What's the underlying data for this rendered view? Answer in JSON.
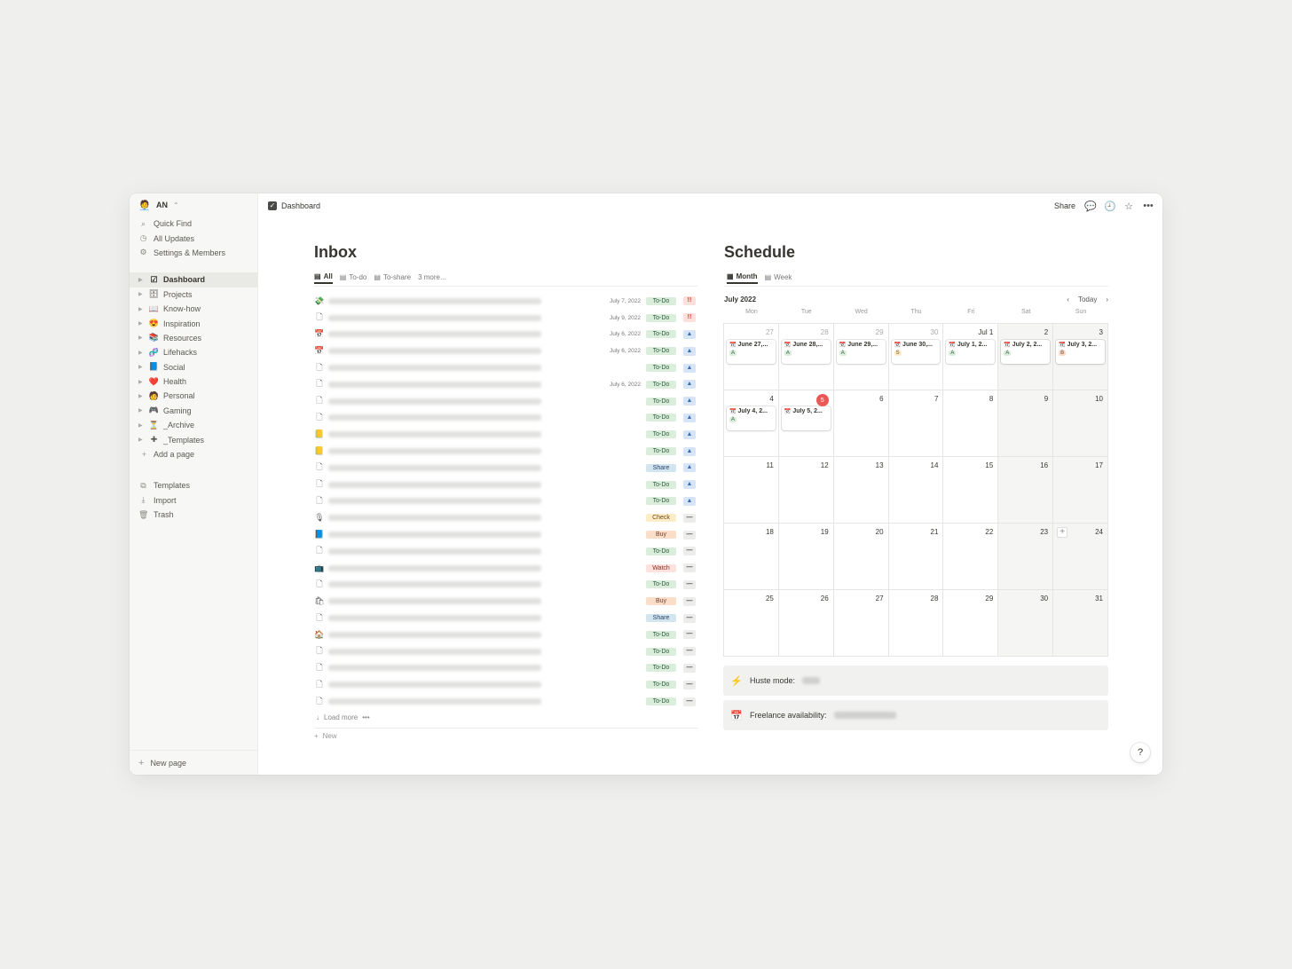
{
  "sidebar": {
    "workspace": {
      "avatar": "🧑‍💼",
      "name": "AN",
      "chevron": "⌃"
    },
    "top_items": [
      {
        "icon": "⌕",
        "icon_name": "search-icon",
        "label": "Quick Find"
      },
      {
        "icon": "◷",
        "icon_name": "clock-icon",
        "label": "All Updates"
      },
      {
        "icon": "⚙",
        "icon_name": "gear-icon",
        "label": "Settings & Members"
      }
    ],
    "pages": [
      {
        "emoji": "☑",
        "label": "Dashboard",
        "active": true
      },
      {
        "emoji": "🗄",
        "label": "Projects"
      },
      {
        "emoji": "📖",
        "label": "Know-how"
      },
      {
        "emoji": "😍",
        "label": "Inspiration"
      },
      {
        "emoji": "📚",
        "label": "Resources"
      },
      {
        "emoji": "🧬",
        "label": "Lifehacks"
      },
      {
        "emoji": "📘",
        "label": "Social"
      },
      {
        "emoji": "❤️",
        "label": "Health"
      },
      {
        "emoji": "🧑",
        "label": "Personal"
      },
      {
        "emoji": "🎮",
        "label": "Gaming"
      },
      {
        "emoji": "⏳",
        "label": "_Archive"
      },
      {
        "emoji": "✚",
        "label": "_Templates"
      }
    ],
    "add_page": {
      "icon": "+",
      "label": "Add a page"
    },
    "bottom_items": [
      {
        "icon": "⧉",
        "icon_name": "templates-icon",
        "label": "Templates"
      },
      {
        "icon": "⤓",
        "icon_name": "import-icon",
        "label": "Import"
      },
      {
        "icon": "🗑",
        "icon_name": "trash-icon",
        "label": "Trash"
      }
    ],
    "new_page": {
      "icon": "+",
      "label": "New page"
    }
  },
  "topbar": {
    "breadcrumb": "Dashboard",
    "share_label": "Share",
    "icons": [
      {
        "glyph": "💬",
        "name": "comment-icon"
      },
      {
        "glyph": "🕘",
        "name": "history-icon"
      },
      {
        "glyph": "☆",
        "name": "star-icon"
      },
      {
        "glyph": "•••",
        "name": "more-icon"
      }
    ]
  },
  "inbox": {
    "title": "Inbox",
    "tabs": [
      {
        "icon": "▤",
        "label": "All",
        "active": true
      },
      {
        "icon": "▤",
        "label": "To-do"
      },
      {
        "icon": "▤",
        "label": "To-share"
      },
      {
        "icon": "",
        "label": "3 more..."
      }
    ],
    "rows": [
      {
        "icon": "💸",
        "date": "July 7, 2022",
        "tag": "To-Do",
        "prio": "high"
      },
      {
        "icon": "🗋",
        "date": "July 9, 2022",
        "tag": "To-Do",
        "prio": "high"
      },
      {
        "icon": "📅",
        "date": "July 6, 2022",
        "tag": "To-Do",
        "prio": "med"
      },
      {
        "icon": "📅",
        "date": "July 6, 2022",
        "tag": "To-Do",
        "prio": "med"
      },
      {
        "icon": "🗋",
        "date": "",
        "tag": "To-Do",
        "prio": "med"
      },
      {
        "icon": "🗋",
        "date": "July 6, 2022",
        "tag": "To-Do",
        "prio": "med"
      },
      {
        "icon": "🗋",
        "date": "",
        "tag": "To-Do",
        "prio": "med"
      },
      {
        "icon": "🗋",
        "date": "",
        "tag": "To-Do",
        "prio": "med"
      },
      {
        "icon": "📒",
        "date": "",
        "tag": "To-Do",
        "prio": "med"
      },
      {
        "icon": "📒",
        "date": "",
        "tag": "To-Do",
        "prio": "med"
      },
      {
        "icon": "🗋",
        "date": "",
        "tag": "Share",
        "prio": "med"
      },
      {
        "icon": "🗋",
        "date": "",
        "tag": "To-Do",
        "prio": "med"
      },
      {
        "icon": "🗋",
        "date": "",
        "tag": "To-Do",
        "prio": "med"
      },
      {
        "icon": "🎙",
        "date": "",
        "tag": "Check",
        "prio": "low"
      },
      {
        "icon": "📘",
        "date": "",
        "tag": "Buy",
        "prio": "low"
      },
      {
        "icon": "🗋",
        "date": "",
        "tag": "To-Do",
        "prio": "low"
      },
      {
        "icon": "📺",
        "date": "",
        "tag": "Watch",
        "prio": "low"
      },
      {
        "icon": "🗋",
        "date": "",
        "tag": "To-Do",
        "prio": "low"
      },
      {
        "icon": "🛍",
        "date": "",
        "tag": "Buy",
        "prio": "low"
      },
      {
        "icon": "🗋",
        "date": "",
        "tag": "Share",
        "prio": "low"
      },
      {
        "icon": "🏠",
        "date": "",
        "tag": "To-Do",
        "prio": "low"
      },
      {
        "icon": "🗋",
        "date": "",
        "tag": "To-Do",
        "prio": "low"
      },
      {
        "icon": "🗋",
        "date": "",
        "tag": "To-Do",
        "prio": "low"
      },
      {
        "icon": "🗋",
        "date": "",
        "tag": "To-Do",
        "prio": "low"
      },
      {
        "icon": "🗋",
        "date": "",
        "tag": "To-Do",
        "prio": "low"
      }
    ],
    "prio_glyphs": {
      "high": "!!",
      "med": "▲",
      "low": "—"
    },
    "load_more": "Load more",
    "load_more_icon": "↓",
    "load_more_dots": "•••",
    "new_label": "New",
    "new_icon": "+",
    "tag_colors": {
      "To-Do": {
        "bg": "#dbeddb",
        "fg": "#2b593f"
      },
      "Share": {
        "bg": "#d3e5ef",
        "fg": "#28456c"
      },
      "Check": {
        "bg": "#fdecc8",
        "fg": "#704a14"
      },
      "Buy": {
        "bg": "#fadec9",
        "fg": "#73402c"
      },
      "Watch": {
        "bg": "#ffe2dd",
        "fg": "#8a2d24"
      }
    }
  },
  "schedule": {
    "title": "Schedule",
    "tabs": [
      {
        "icon": "▦",
        "label": "Month",
        "active": true
      },
      {
        "icon": "▤",
        "label": "Week"
      }
    ],
    "month_label": "July 2022",
    "today_label": "Today",
    "prev_icon": "‹",
    "next_icon": "›",
    "weekdays": [
      "Mon",
      "Tue",
      "Wed",
      "Thu",
      "Fri",
      "Sat",
      "Sun"
    ],
    "weeks": [
      [
        {
          "day": "27",
          "muted": true,
          "event": {
            "title": "June 27,...",
            "badge": "A"
          }
        },
        {
          "day": "28",
          "muted": true,
          "event": {
            "title": "June 28,...",
            "badge": "A"
          }
        },
        {
          "day": "29",
          "muted": true,
          "event": {
            "title": "June 29,...",
            "badge": "A"
          }
        },
        {
          "day": "30",
          "muted": true,
          "event": {
            "title": "June 30,...",
            "badge": "S"
          }
        },
        {
          "day": "Jul 1",
          "event": {
            "title": "July 1, 2...",
            "badge": "A"
          }
        },
        {
          "day": "2",
          "event": {
            "title": "July 2, 2...",
            "badge": "A"
          }
        },
        {
          "day": "3",
          "event": {
            "title": "July 3, 2...",
            "badge": "B"
          }
        }
      ],
      [
        {
          "day": "4",
          "event": {
            "title": "July 4, 2...",
            "badge": "A"
          }
        },
        {
          "day": "5",
          "today": true,
          "event": {
            "title": "July 5, 2..."
          }
        },
        {
          "day": "6"
        },
        {
          "day": "7"
        },
        {
          "day": "8"
        },
        {
          "day": "9"
        },
        {
          "day": "10"
        }
      ],
      [
        {
          "day": "11"
        },
        {
          "day": "12"
        },
        {
          "day": "13"
        },
        {
          "day": "14"
        },
        {
          "day": "15"
        },
        {
          "day": "16"
        },
        {
          "day": "17"
        }
      ],
      [
        {
          "day": "18"
        },
        {
          "day": "19"
        },
        {
          "day": "20"
        },
        {
          "day": "21"
        },
        {
          "day": "22"
        },
        {
          "day": "23"
        },
        {
          "day": "24",
          "add": true
        }
      ],
      [
        {
          "day": "25"
        },
        {
          "day": "26"
        },
        {
          "day": "27"
        },
        {
          "day": "28"
        },
        {
          "day": "29"
        },
        {
          "day": "30"
        },
        {
          "day": "31"
        }
      ]
    ],
    "event_icon": "📆",
    "callouts": [
      {
        "icon": "⚡",
        "label": "Huste mode:"
      },
      {
        "icon": "📅",
        "label": "Freelance availability:"
      }
    ]
  },
  "help": "?"
}
